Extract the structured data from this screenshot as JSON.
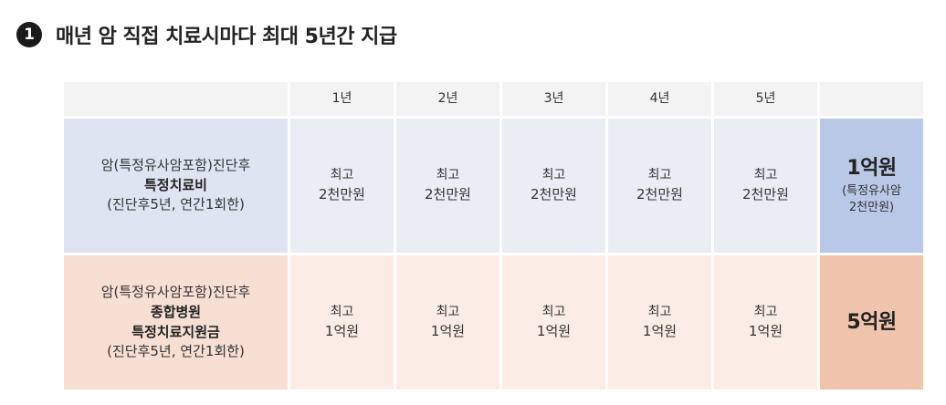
{
  "heading": {
    "number": "1",
    "title": "매년 암 직접 치료시마다 최대 5년간 지급"
  },
  "table": {
    "years": [
      "1년",
      "2년",
      "3년",
      "4년",
      "5년"
    ],
    "row1": {
      "label_line1": "암(특정유사암포함)진단후",
      "label_line2": "특정치료비",
      "label_line3": "(진단후5년, 연간1회한)",
      "cells": [
        {
          "top": "최고",
          "bottom": "2천만원"
        },
        {
          "top": "최고",
          "bottom": "2천만원"
        },
        {
          "top": "최고",
          "bottom": "2천만원"
        },
        {
          "top": "최고",
          "bottom": "2천만원"
        },
        {
          "top": "최고",
          "bottom": "2천만원"
        }
      ],
      "total": "1억원",
      "total_note_line1": "(특정유사암",
      "total_note_line2": "2천만원)"
    },
    "row2": {
      "label_line1": "암(특정유사암포함)진단후",
      "label_line2": "종합병원",
      "label_line3": "특정치료지원금",
      "label_line4": "(진단후5년, 연간1회한)",
      "cells": [
        {
          "top": "최고",
          "bottom": "1억원"
        },
        {
          "top": "최고",
          "bottom": "1억원"
        },
        {
          "top": "최고",
          "bottom": "1억원"
        },
        {
          "top": "최고",
          "bottom": "1억원"
        },
        {
          "top": "최고",
          "bottom": "1억원"
        }
      ],
      "total": "5억원"
    }
  }
}
